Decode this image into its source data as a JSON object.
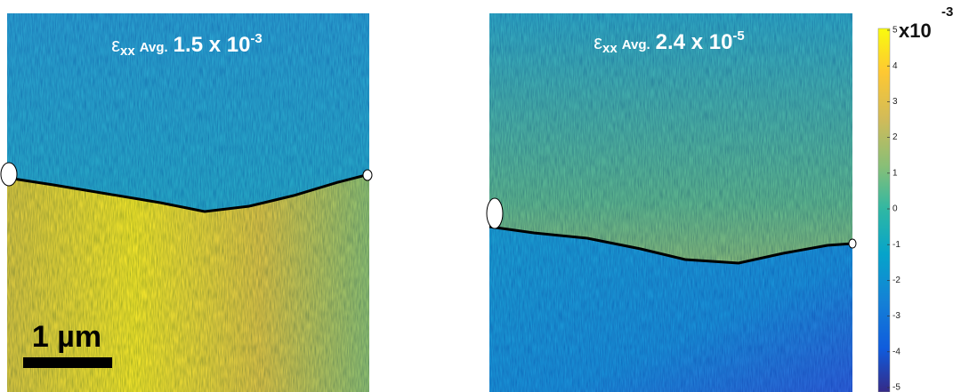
{
  "panels": [
    {
      "symbol": "ε",
      "subscript": "xx",
      "avg_label": "Avg.",
      "value": "1.5 x 10",
      "exponent": "-3"
    },
    {
      "symbol": "ε",
      "subscript": "xx",
      "avg_label": "Avg.",
      "value": "2.4 x 10",
      "exponent": "-5"
    }
  ],
  "scale_bar": "1 µm",
  "colorbar": {
    "ticks": [
      5,
      4,
      3,
      2,
      1,
      0,
      -1,
      -2,
      -3,
      -4,
      -5
    ],
    "multiplier": "x10",
    "exponent": "-3"
  }
}
